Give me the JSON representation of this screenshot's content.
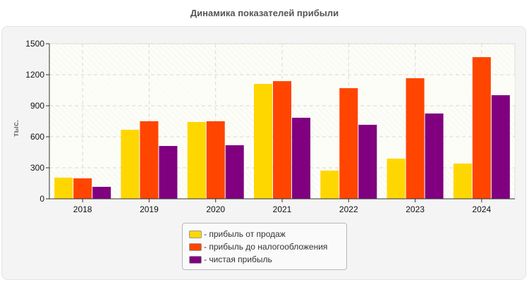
{
  "chart_data": {
    "type": "bar",
    "title": "Динамика показателей прибыли",
    "xlabel": "",
    "ylabel": "тыс.",
    "ylim": [
      0,
      1500
    ],
    "yticks": [
      0,
      300,
      600,
      900,
      1200,
      1500
    ],
    "grid": true,
    "legend_position": "bottom",
    "categories": [
      "2018",
      "2019",
      "2020",
      "2021",
      "2022",
      "2023",
      "2024"
    ],
    "series": [
      {
        "name": "прибыль от продаж",
        "color": "#FFD700",
        "values": [
          205,
          668,
          743,
          1111,
          273,
          389,
          341
        ]
      },
      {
        "name": "прибыль до налогообложения",
        "color": "#FF4500",
        "values": [
          198,
          750,
          750,
          1138,
          1070,
          1166,
          1370
        ]
      },
      {
        "name": "чистая прибыль",
        "color": "#800080",
        "values": [
          116,
          511,
          518,
          784,
          716,
          825,
          1002
        ]
      }
    ]
  },
  "legend": {
    "items": [
      {
        "label": "- прибыль от продаж",
        "color": "#FFD700"
      },
      {
        "label": "- прибыль до налогообложения",
        "color": "#FF4500"
      },
      {
        "label": "- чистая прибыль",
        "color": "#800080"
      }
    ]
  }
}
